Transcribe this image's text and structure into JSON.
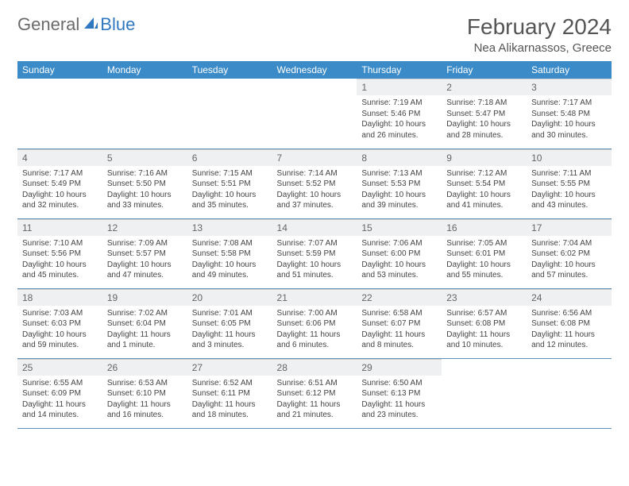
{
  "brand": {
    "part1": "General",
    "part2": "Blue"
  },
  "title": "February 2024",
  "location": "Nea Alikarnassos, Greece",
  "colors": {
    "header_bg": "#3b8bc9",
    "header_text": "#ffffff",
    "daynum_bg": "#eef0f1",
    "row_border": "#5e8fb8",
    "logo_gray": "#6a6a6a",
    "logo_blue": "#2f78bf"
  },
  "day_headers": [
    "Sunday",
    "Monday",
    "Tuesday",
    "Wednesday",
    "Thursday",
    "Friday",
    "Saturday"
  ],
  "weeks": [
    [
      {
        "n": "",
        "sr": "",
        "ss": "",
        "dl": "",
        "empty": true
      },
      {
        "n": "",
        "sr": "",
        "ss": "",
        "dl": "",
        "empty": true
      },
      {
        "n": "",
        "sr": "",
        "ss": "",
        "dl": "",
        "empty": true
      },
      {
        "n": "",
        "sr": "",
        "ss": "",
        "dl": "",
        "empty": true
      },
      {
        "n": "1",
        "sr": "Sunrise: 7:19 AM",
        "ss": "Sunset: 5:46 PM",
        "dl": "Daylight: 10 hours and 26 minutes."
      },
      {
        "n": "2",
        "sr": "Sunrise: 7:18 AM",
        "ss": "Sunset: 5:47 PM",
        "dl": "Daylight: 10 hours and 28 minutes."
      },
      {
        "n": "3",
        "sr": "Sunrise: 7:17 AM",
        "ss": "Sunset: 5:48 PM",
        "dl": "Daylight: 10 hours and 30 minutes."
      }
    ],
    [
      {
        "n": "4",
        "sr": "Sunrise: 7:17 AM",
        "ss": "Sunset: 5:49 PM",
        "dl": "Daylight: 10 hours and 32 minutes."
      },
      {
        "n": "5",
        "sr": "Sunrise: 7:16 AM",
        "ss": "Sunset: 5:50 PM",
        "dl": "Daylight: 10 hours and 33 minutes."
      },
      {
        "n": "6",
        "sr": "Sunrise: 7:15 AM",
        "ss": "Sunset: 5:51 PM",
        "dl": "Daylight: 10 hours and 35 minutes."
      },
      {
        "n": "7",
        "sr": "Sunrise: 7:14 AM",
        "ss": "Sunset: 5:52 PM",
        "dl": "Daylight: 10 hours and 37 minutes."
      },
      {
        "n": "8",
        "sr": "Sunrise: 7:13 AM",
        "ss": "Sunset: 5:53 PM",
        "dl": "Daylight: 10 hours and 39 minutes."
      },
      {
        "n": "9",
        "sr": "Sunrise: 7:12 AM",
        "ss": "Sunset: 5:54 PM",
        "dl": "Daylight: 10 hours and 41 minutes."
      },
      {
        "n": "10",
        "sr": "Sunrise: 7:11 AM",
        "ss": "Sunset: 5:55 PM",
        "dl": "Daylight: 10 hours and 43 minutes."
      }
    ],
    [
      {
        "n": "11",
        "sr": "Sunrise: 7:10 AM",
        "ss": "Sunset: 5:56 PM",
        "dl": "Daylight: 10 hours and 45 minutes."
      },
      {
        "n": "12",
        "sr": "Sunrise: 7:09 AM",
        "ss": "Sunset: 5:57 PM",
        "dl": "Daylight: 10 hours and 47 minutes."
      },
      {
        "n": "13",
        "sr": "Sunrise: 7:08 AM",
        "ss": "Sunset: 5:58 PM",
        "dl": "Daylight: 10 hours and 49 minutes."
      },
      {
        "n": "14",
        "sr": "Sunrise: 7:07 AM",
        "ss": "Sunset: 5:59 PM",
        "dl": "Daylight: 10 hours and 51 minutes."
      },
      {
        "n": "15",
        "sr": "Sunrise: 7:06 AM",
        "ss": "Sunset: 6:00 PM",
        "dl": "Daylight: 10 hours and 53 minutes."
      },
      {
        "n": "16",
        "sr": "Sunrise: 7:05 AM",
        "ss": "Sunset: 6:01 PM",
        "dl": "Daylight: 10 hours and 55 minutes."
      },
      {
        "n": "17",
        "sr": "Sunrise: 7:04 AM",
        "ss": "Sunset: 6:02 PM",
        "dl": "Daylight: 10 hours and 57 minutes."
      }
    ],
    [
      {
        "n": "18",
        "sr": "Sunrise: 7:03 AM",
        "ss": "Sunset: 6:03 PM",
        "dl": "Daylight: 10 hours and 59 minutes."
      },
      {
        "n": "19",
        "sr": "Sunrise: 7:02 AM",
        "ss": "Sunset: 6:04 PM",
        "dl": "Daylight: 11 hours and 1 minute."
      },
      {
        "n": "20",
        "sr": "Sunrise: 7:01 AM",
        "ss": "Sunset: 6:05 PM",
        "dl": "Daylight: 11 hours and 3 minutes."
      },
      {
        "n": "21",
        "sr": "Sunrise: 7:00 AM",
        "ss": "Sunset: 6:06 PM",
        "dl": "Daylight: 11 hours and 6 minutes."
      },
      {
        "n": "22",
        "sr": "Sunrise: 6:58 AM",
        "ss": "Sunset: 6:07 PM",
        "dl": "Daylight: 11 hours and 8 minutes."
      },
      {
        "n": "23",
        "sr": "Sunrise: 6:57 AM",
        "ss": "Sunset: 6:08 PM",
        "dl": "Daylight: 11 hours and 10 minutes."
      },
      {
        "n": "24",
        "sr": "Sunrise: 6:56 AM",
        "ss": "Sunset: 6:08 PM",
        "dl": "Daylight: 11 hours and 12 minutes."
      }
    ],
    [
      {
        "n": "25",
        "sr": "Sunrise: 6:55 AM",
        "ss": "Sunset: 6:09 PM",
        "dl": "Daylight: 11 hours and 14 minutes."
      },
      {
        "n": "26",
        "sr": "Sunrise: 6:53 AM",
        "ss": "Sunset: 6:10 PM",
        "dl": "Daylight: 11 hours and 16 minutes."
      },
      {
        "n": "27",
        "sr": "Sunrise: 6:52 AM",
        "ss": "Sunset: 6:11 PM",
        "dl": "Daylight: 11 hours and 18 minutes."
      },
      {
        "n": "28",
        "sr": "Sunrise: 6:51 AM",
        "ss": "Sunset: 6:12 PM",
        "dl": "Daylight: 11 hours and 21 minutes."
      },
      {
        "n": "29",
        "sr": "Sunrise: 6:50 AM",
        "ss": "Sunset: 6:13 PM",
        "dl": "Daylight: 11 hours and 23 minutes."
      },
      {
        "n": "",
        "sr": "",
        "ss": "",
        "dl": "",
        "empty": true
      },
      {
        "n": "",
        "sr": "",
        "ss": "",
        "dl": "",
        "empty": true
      }
    ]
  ]
}
